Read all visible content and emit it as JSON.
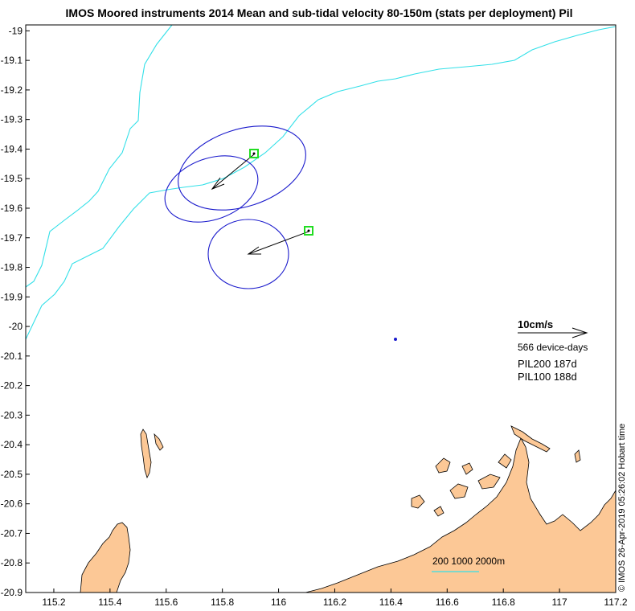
{
  "title": "IMOS Moored instruments 2014 Mean and sub-tidal velocity 80-150m (stats per deployment) Pil",
  "axes": {
    "x_ticks": [
      "115.2",
      "115.4",
      "115.6",
      "115.8",
      "116",
      "116.2",
      "116.4",
      "116.6",
      "116.8",
      "117",
      "117.2"
    ],
    "y_ticks": [
      "-19",
      "-19.1",
      "-19.2",
      "-19.3",
      "-19.4",
      "-19.5",
      "-19.6",
      "-19.7",
      "-19.8",
      "-19.9",
      "-20",
      "-20.1",
      "-20.2",
      "-20.3",
      "-20.4",
      "-20.5",
      "-20.6",
      "-20.7",
      "-20.8",
      "-20.9"
    ],
    "xlim": [
      115.1,
      117.2
    ],
    "ylim": [
      -20.9,
      -18.98
    ]
  },
  "legend": {
    "scale_label": "10cm/s",
    "device_days": "566 device-days",
    "deployments": [
      "PIL200 187d",
      "PIL100 188d"
    ]
  },
  "isobath_legend": "200 1000 2000m",
  "timestamp": "© IMOS 26-Apr-2019 05:26:02 Hobart time",
  "stations": [
    {
      "lon": 115.91,
      "lat": -19.435,
      "mean_u_cms": -4.5,
      "mean_v_cms": -3.8
    },
    {
      "lon": 116.11,
      "lat": -19.695,
      "mean_u_cms": -7.5,
      "mean_v_cms": -2.5
    }
  ],
  "colors": {
    "land": "#fcc896",
    "isobath": "#33e0e8",
    "ellipse": "#1a1acc",
    "station_marker": "#22dd22",
    "anomaly_dot": "#1a1acc"
  }
}
